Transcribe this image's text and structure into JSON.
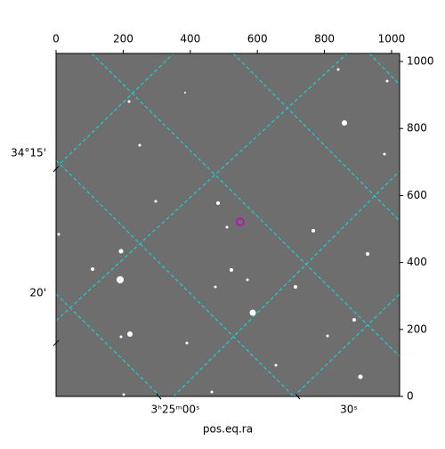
{
  "chart_data": {
    "type": "image",
    "xlabel": "pos.eq.ra",
    "xlim": [
      0,
      1024
    ],
    "ylim": [
      0,
      1024
    ],
    "xticks": [
      0,
      200,
      400,
      600,
      800,
      1000
    ],
    "yticks": [
      0,
      200,
      400,
      600,
      800,
      1000
    ],
    "wcs_x_labels": [
      "3ʰ25ᵐ00ˢ",
      "30ˢ"
    ],
    "wcs_y_labels": [
      "34°15'",
      "20'"
    ],
    "marker": {
      "x": 549,
      "y": 521,
      "color": "#cc00cc"
    }
  }
}
